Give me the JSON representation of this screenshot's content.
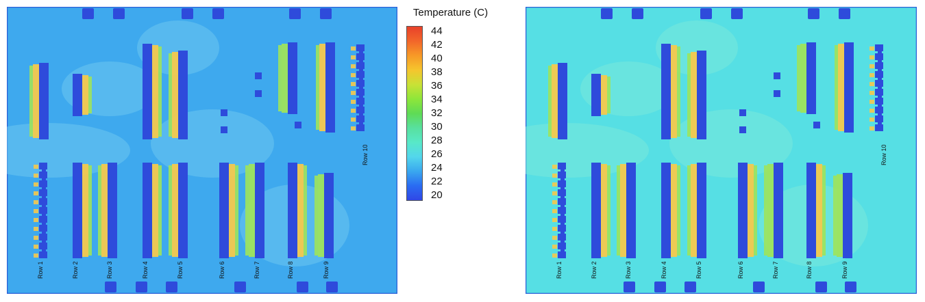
{
  "legend": {
    "title": "Temperature (C)",
    "ticks": [
      "44",
      "42",
      "40",
      "38",
      "36",
      "34",
      "32",
      "30",
      "28",
      "26",
      "24",
      "22",
      "20"
    ],
    "colors": [
      "#e8412a",
      "#f2662a",
      "#f79a27",
      "#f5c52d",
      "#c9e136",
      "#8ee63a",
      "#5fdb55",
      "#58e09e",
      "#58e8c8",
      "#53d6ec",
      "#3aa8ef",
      "#2a6cf2",
      "#3047e6"
    ]
  },
  "rows": [
    "Row 1",
    "Row 2",
    "Row 3",
    "Row 4",
    "Row 5",
    "Row 6",
    "Row 7",
    "Row 8",
    "Row 9",
    "Row 10"
  ],
  "colors": {
    "rack": "#2e4bdb",
    "left_background": "#3ea9ee",
    "right_background": "#56dfe4",
    "hot_aisle": "#f5c84c",
    "warm_aisle": "#9fe35b"
  }
}
